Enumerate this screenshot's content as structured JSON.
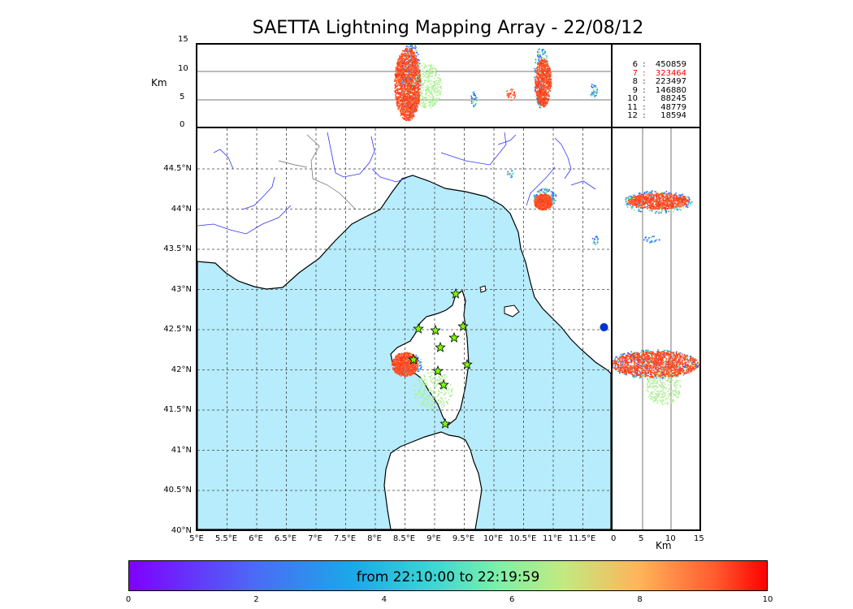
{
  "title": "SAETTA Lightning Mapping Array - 22/08/12",
  "units": {
    "km_top": "Km",
    "km_bottom": "Km"
  },
  "top_panel": {
    "height_ticks": [
      "15",
      "10",
      "5",
      "0"
    ]
  },
  "map": {
    "lat_ticks": [
      "44.5°N",
      "44°N",
      "43.5°N",
      "43°N",
      "42.5°N",
      "42°N",
      "41.5°N",
      "41°N",
      "40.5°N",
      "40°N"
    ],
    "lon_ticks": [
      "5°E",
      "5.5°E",
      "6°E",
      "6.5°E",
      "7°E",
      "7.5°E",
      "8°E",
      "8.5°E",
      "9°E",
      "9.5°E",
      "10°E",
      "10.5°E",
      "11°E",
      "11.5°E"
    ],
    "colors": {
      "sea": "#b6ecfb",
      "land": "#ffffff",
      "coast": "#000000",
      "river": "#3333ff",
      "grid": "#444444",
      "station": "#7cfc00"
    }
  },
  "right_panel": {
    "km_ticks": [
      "0",
      "5",
      "10",
      "15"
    ]
  },
  "legend": [
    {
      "k": "6",
      "v": "450859",
      "color": "#000000"
    },
    {
      "k": "7",
      "v": "323464",
      "color": "#ff0000"
    },
    {
      "k": "8",
      "v": "223497",
      "color": "#000000"
    },
    {
      "k": "9",
      "v": "146880",
      "color": "#000000"
    },
    {
      "k": "10",
      "v": "88245",
      "color": "#000000"
    },
    {
      "k": "11",
      "v": "48779",
      "color": "#000000"
    },
    {
      "k": "12",
      "v": "18594",
      "color": "#000000"
    }
  ],
  "colorbar": {
    "label": "from 22:10:00 to 22:19:59",
    "ticks": [
      "0",
      "2",
      "4",
      "6",
      "8",
      "10"
    ],
    "range": [
      0,
      10
    ]
  }
}
